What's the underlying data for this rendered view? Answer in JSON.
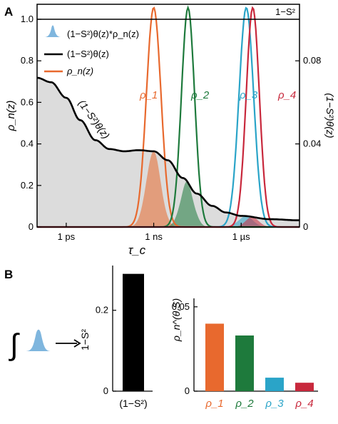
{
  "panels": {
    "a_label": "A",
    "b_label": "B"
  },
  "chart_data": [
    {
      "type": "line",
      "panel": "A",
      "x_scale": "log",
      "x_unit": "s",
      "xlim": [
        1e-13,
        0.0001
      ],
      "ylim": [
        0,
        1.0
      ],
      "y2lim": [
        0,
        0.1
      ],
      "xlabel": "τ_c",
      "ylabel": "ρ_n(z)",
      "y2label": "(1−S²)θ(z)",
      "x_ticks": [
        {
          "value": 1e-12,
          "label": "1 ps"
        },
        {
          "value": 1e-09,
          "label": "1 ns"
        },
        {
          "value": 1e-06,
          "label": "1 µs"
        }
      ],
      "y_ticks": [
        {
          "value": 0,
          "label": "0"
        },
        {
          "value": 0.2,
          "label": "0.2"
        },
        {
          "value": 0.4,
          "label": "0.4"
        },
        {
          "value": 0.6,
          "label": "0.6"
        },
        {
          "value": 0.8,
          "label": "0.8"
        },
        {
          "value": 1.0,
          "label": "1.0"
        }
      ],
      "y2_ticks": [
        {
          "value": 0,
          "label": "0"
        },
        {
          "value": 0.04,
          "label": "0.04"
        },
        {
          "value": 0.08,
          "label": "0.08"
        }
      ],
      "reference_line": {
        "value": 0.1,
        "label": "1−S²",
        "axis": "right"
      },
      "legend": {
        "placement": "top-left",
        "entries": [
          {
            "label": "(1−S²)θ(z)*ρ_n(z)",
            "marker": "filled-peak"
          },
          {
            "label": "(1−S²)θ(z)",
            "marker": "line"
          },
          {
            "label": "ρ_n(z)",
            "marker": "line"
          }
        ]
      },
      "annotations": [
        {
          "text": "(1−S²)θ(z)",
          "kind": "curve-label"
        }
      ],
      "theta_curve": {
        "name": "(1−S²)θ(z)",
        "axis": "right",
        "color": "#000000",
        "x": [
          1e-13,
          3e-13,
          1e-12,
          3e-12,
          1e-11,
          3e-11,
          1e-10,
          3e-10,
          1e-09,
          3e-09,
          1e-08,
          3e-08,
          1e-07,
          3e-07,
          1e-06,
          1e-05,
          0.0001
        ],
        "y": [
          0.067,
          0.065,
          0.058,
          0.048,
          0.039,
          0.035,
          0.034,
          0.0345,
          0.034,
          0.03,
          0.022,
          0.015,
          0.0095,
          0.0065,
          0.005,
          0.0035,
          0.003
        ]
      },
      "series": [
        {
          "name": "ρ_1",
          "color": "#e8692e",
          "center": 1e-09,
          "peak": 1.0,
          "width_decades": 0.5
        },
        {
          "name": "ρ_2",
          "color": "#1e7a3c",
          "center": 1.5e-08,
          "peak": 1.0,
          "width_decades": 0.45
        },
        {
          "name": "ρ_3",
          "color": "#2aa4c8",
          "center": 1.5e-06,
          "peak": 1.0,
          "width_decades": 0.5
        },
        {
          "name": "ρ_4",
          "color": "#c8283c",
          "center": 2.5e-06,
          "peak": 1.0,
          "width_decades": 0.45
        }
      ]
    },
    {
      "type": "bar",
      "panel": "B-left",
      "categories": [
        "(1−S²)"
      ],
      "values": [
        0.29
      ],
      "ylabel": "1−S²",
      "ylim": [
        0,
        0.3
      ],
      "y_ticks": [
        {
          "value": 0,
          "label": "0"
        },
        {
          "value": 0.2,
          "label": "0.2"
        }
      ],
      "colors": [
        "#000000"
      ]
    },
    {
      "type": "bar",
      "panel": "B-right",
      "categories": [
        "ρ_1",
        "ρ_2",
        "ρ_3",
        "ρ_4"
      ],
      "values": [
        0.04,
        0.033,
        0.008,
        0.005
      ],
      "ylabel": "ρ_n^(θ,S)",
      "ylim": [
        0,
        0.055
      ],
      "y_ticks": [
        {
          "value": 0,
          "label": "0"
        },
        {
          "value": 0.05,
          "label": "0.05"
        }
      ],
      "colors": [
        "#e8692e",
        "#1e7a3c",
        "#2aa4c8",
        "#c8283c"
      ]
    }
  ],
  "colors": {
    "fill_area": "#dcdcdc",
    "peak_fill": "#7fb6de"
  },
  "icons": {
    "integral_symbol": "∫",
    "integral_arrow": "arrow-right-icon"
  }
}
